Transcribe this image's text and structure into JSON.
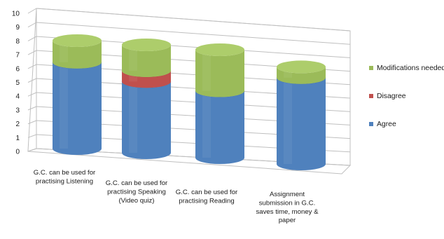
{
  "chart_data": {
    "type": "bar",
    "subtype": "stacked-cylinder-3d",
    "categories": [
      [
        "G.C. can be used for",
        "practising Listening"
      ],
      [
        "G.C. can be used for",
        "practising Speaking",
        "(Video quiz)"
      ],
      [
        "G.C. can be used for",
        "practising Reading"
      ],
      [
        "Assignment",
        "submission in G.C.",
        "saves time,  money &",
        "paper"
      ]
    ],
    "series": [
      {
        "name": "Agree",
        "color": "#4f81bd",
        "values": [
          8,
          6.6,
          6.2,
          8
        ]
      },
      {
        "name": "Disagree",
        "color": "#c0504d",
        "values": [
          0,
          1,
          0,
          0
        ]
      },
      {
        "name": "Modifications needed",
        "color": "#9bbb59",
        "values": [
          2,
          2.4,
          3.8,
          1
        ]
      }
    ],
    "ylim": [
      0,
      10
    ],
    "yticks": [
      "0",
      "1",
      "2",
      "3",
      "4",
      "5",
      "6",
      "7",
      "8",
      "9",
      "10"
    ],
    "legend_position": "right",
    "legend_order": [
      "Modifications needed",
      "Disagree",
      "Agree"
    ],
    "grid": true,
    "title": "",
    "xlabel": "",
    "ylabel": ""
  }
}
